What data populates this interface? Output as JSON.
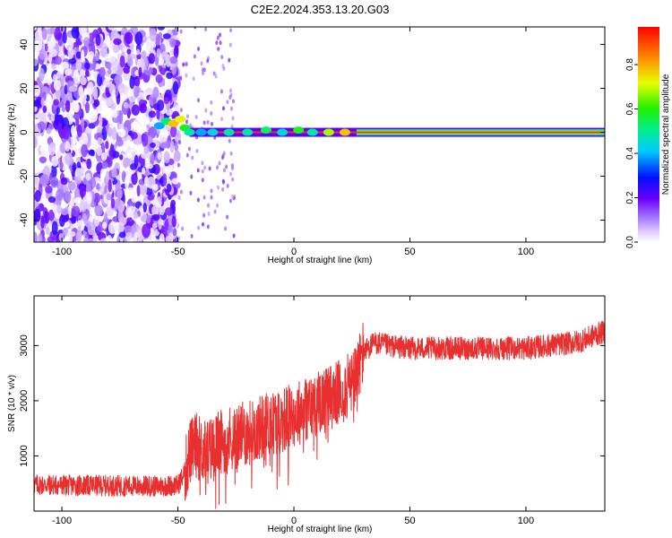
{
  "figure": {
    "title": "C2E2.2024.353.13.20.G03"
  },
  "chart_data": [
    {
      "type": "heatmap",
      "xlabel": "Height of straight line (km)",
      "ylabel": "Frequency (Hz)",
      "xlim": [
        -112,
        134
      ],
      "ylim": [
        -50,
        48
      ],
      "xticks": [
        -100,
        -50,
        0,
        50,
        100
      ],
      "yticks": [
        -40,
        -20,
        0,
        20,
        40
      ],
      "colorbar": {
        "label": "Normalized spectral amplitude",
        "range": [
          0,
          0.97
        ],
        "ticks": [
          0.0,
          0.2,
          0.4,
          0.6,
          0.8
        ],
        "colormap": "rainbow (white-violet-blue-cyan-green-yellow-orange-red)"
      },
      "features": [
        {
          "region": "x -112 to -50",
          "description": "scattered low-amplitude noise across all frequencies (violet/white)"
        },
        {
          "region": "x -60 to -45",
          "description": "cluster near 0 to +7 Hz with amplitudes up to ~0.8"
        },
        {
          "region": "x -45 to 27",
          "description": "narrow band at 0 Hz, amplitude ~0.3-0.97"
        },
        {
          "region": "x 27 to 134",
          "description": "steady narrow band at 0 Hz, peak ~0.5-0.95"
        }
      ]
    },
    {
      "type": "line",
      "xlabel": "Height of straight line (km)",
      "ylabel": "SNR (10 * v/v)",
      "xlim": [
        -112,
        134
      ],
      "ylim": [
        0,
        3900
      ],
      "xticks": [
        -100,
        -50,
        0,
        50,
        100
      ],
      "yticks": [
        1000,
        2000,
        3000
      ],
      "color": "#e83030",
      "series": [
        {
          "x": [
            -112,
            -100,
            -80,
            -60,
            -50,
            -47,
            -45,
            -42,
            -40,
            -38,
            -35,
            -30,
            -25,
            -20,
            -15,
            -10,
            -5,
            0,
            5,
            10,
            15,
            20,
            25,
            28,
            30,
            35,
            40,
            50,
            60,
            70,
            80,
            90,
            100,
            110,
            120,
            125,
            130,
            134
          ],
          "y": [
            480,
            470,
            460,
            450,
            470,
            700,
            1050,
            1200,
            1100,
            1050,
            1150,
            1300,
            1350,
            1400,
            1500,
            1600,
            1650,
            1750,
            1850,
            1950,
            2050,
            2150,
            2300,
            2600,
            2900,
            3050,
            3000,
            2950,
            2950,
            2950,
            2950,
            2950,
            2950,
            3000,
            3050,
            3100,
            3200,
            3250
          ]
        }
      ]
    }
  ]
}
